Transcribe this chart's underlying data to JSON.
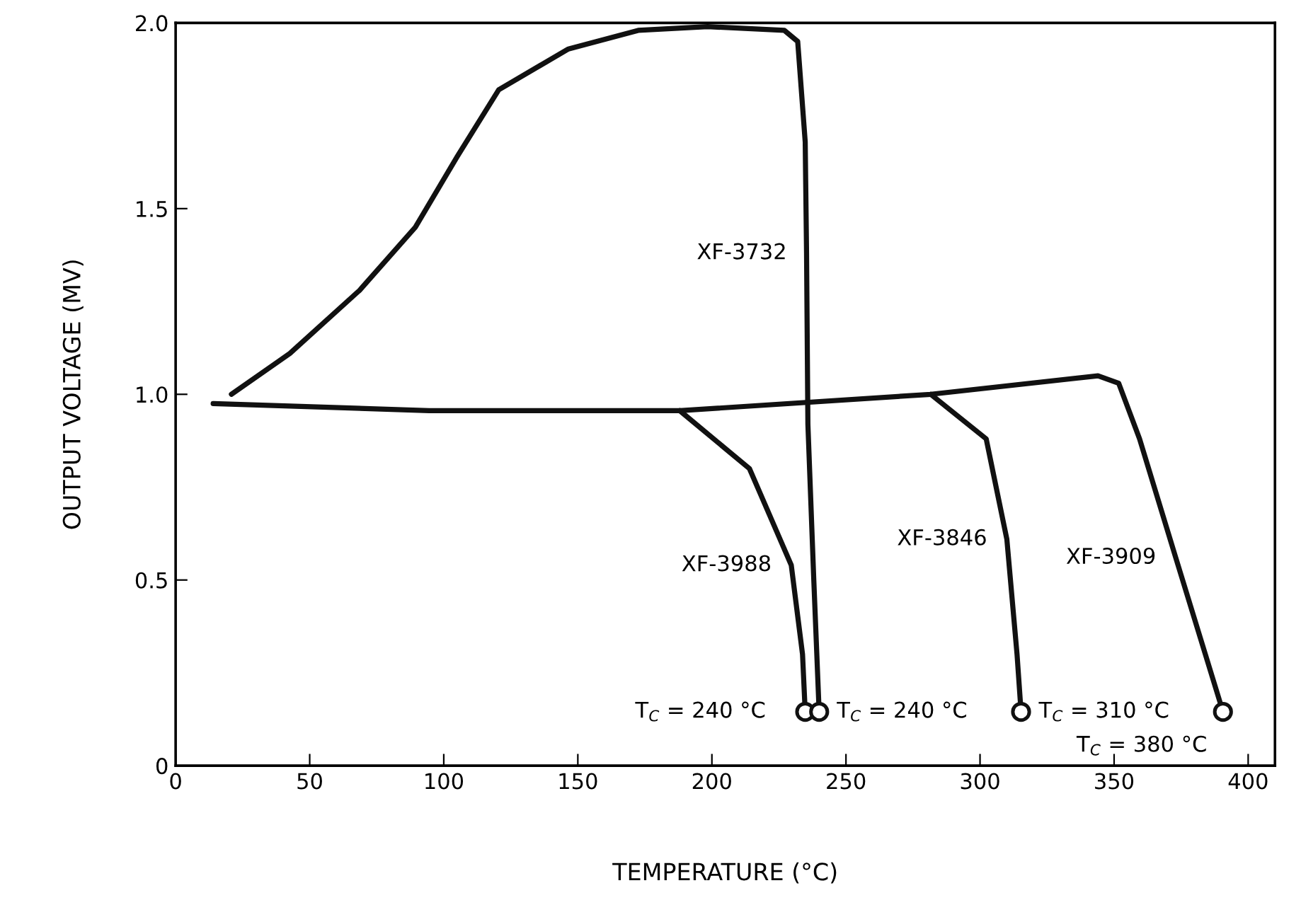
{
  "chart_data": {
    "type": "line",
    "xlabel": "TEMPERATURE (°C)",
    "ylabel": "OUTPUT VOLTAGE (MV)",
    "xlim": [
      0,
      410
    ],
    "ylim": [
      0,
      2.0
    ],
    "xticks": [
      0,
      50,
      100,
      150,
      200,
      250,
      300,
      350,
      400
    ],
    "yticks": [
      0,
      0.5,
      {
        "value": 1.0,
        "label": "1.0"
      },
      1.5,
      {
        "value": 2.0,
        "label": "2.0"
      }
    ],
    "grid": false,
    "marker": "none",
    "line_style": "solid",
    "series": [
      {
        "color": "#111111",
        "x": [
          20.8,
          42.6,
          68.6,
          89.4,
          105,
          120.5,
          146.5,
          172.5,
          198.4,
          227,
          232,
          234.8,
          235.3,
          235.8,
          238,
          240
        ],
        "values": [
          1.0,
          1.11,
          1.28,
          1.45,
          1.64,
          1.82,
          1.93,
          1.98,
          1.99,
          1.98,
          1.95,
          1.68,
          1.38,
          0.92,
          0.5,
          0.145
        ]
      },
      {
        "color": "#111111",
        "x": [
          14,
          94.5,
          188,
          281.6,
          344,
          351.7,
          359.5,
          373,
          390.6
        ],
        "values": [
          0.975,
          0.956,
          0.956,
          1.0,
          1.05,
          1.03,
          0.88,
          0.56,
          0.145
        ]
      },
      {
        "color": "#111111",
        "x": [
          281.6,
          302.3,
          310,
          313.8,
          315.3
        ],
        "values": [
          1.0,
          0.88,
          0.61,
          0.3,
          0.145
        ]
      },
      {
        "color": "#111111",
        "x": [
          188,
          214,
          229.6,
          233.8,
          234.8
        ],
        "values": [
          0.956,
          0.8,
          0.54,
          0.3,
          0.145
        ]
      },
      {
        "type": "scatter",
        "marker": "circle",
        "color": "#111111",
        "x": [
          234.8,
          240,
          315.3,
          390.6
        ],
        "values": [
          0.145,
          0.145,
          0.145,
          0.145
        ]
      }
    ],
    "annotations": [
      {
        "text": "XF-3732",
        "x": 235.3,
        "y": 1.38
      },
      {
        "text": "XF-3988",
        "x": 229.6,
        "y": 0.54
      },
      {
        "text": "XF-3846",
        "x": 310,
        "y": 0.61
      },
      {
        "text": "XF-3909",
        "x": 373,
        "y": 0.56
      },
      {
        "text": "T$_{C}$ = 240 °C",
        "x": 234.8,
        "y": 0.145
      },
      {
        "text": "T$_{C}$ = 240 °C",
        "x": 240,
        "y": 0.145
      },
      {
        "text": "T$_{C}$ = 310 °C",
        "x": 315.3,
        "y": 0.145
      },
      {
        "text": "T$_{C}$ = 380 °C",
        "x": 390.6,
        "y": 0.145
      }
    ]
  }
}
